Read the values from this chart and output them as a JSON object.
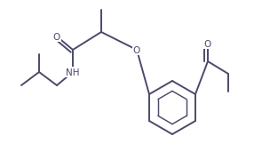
{
  "background_color": "#ffffff",
  "line_color": "#4a4a6a",
  "bond_lw": 1.4,
  "label_fontsize": 7.5,
  "fig_width": 2.83,
  "fig_height": 1.86,
  "dpi": 100
}
